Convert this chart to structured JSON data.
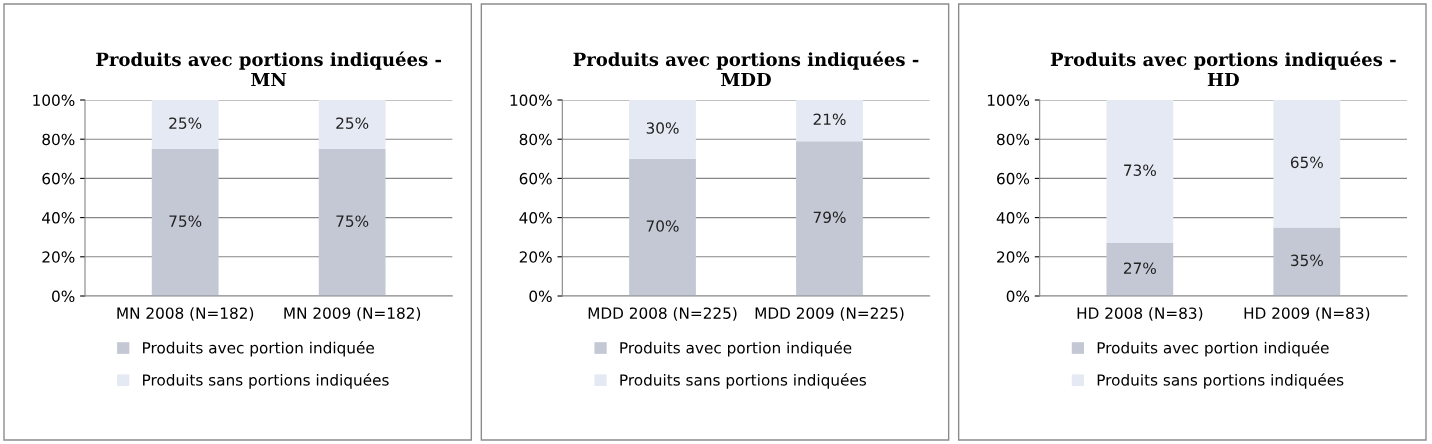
{
  "chart_data": [
    {
      "type": "bar",
      "title": "Produits avec portions indiquées -\nMN",
      "stacked": true,
      "categories": [
        "MN 2008 (N=182)",
        "MN 2009 (N=182)"
      ],
      "series": [
        {
          "name": "Produits avec portion indiquée",
          "color": "#c3c8d4",
          "values": [
            75,
            75
          ],
          "value_labels": [
            "75%",
            "75%"
          ]
        },
        {
          "name": "Produits sans portions indiquées",
          "color": "#e5e9f3",
          "values": [
            25,
            25
          ],
          "value_labels": [
            "25%",
            "25%"
          ]
        }
      ],
      "ylim": [
        0,
        100
      ],
      "yticks": [
        {
          "value": 0,
          "label": "0%"
        },
        {
          "value": 20,
          "label": "20%"
        },
        {
          "value": 40,
          "label": "40%"
        },
        {
          "value": 60,
          "label": "60%"
        },
        {
          "value": 80,
          "label": "80%"
        },
        {
          "value": 100,
          "label": "100%"
        }
      ],
      "grid": "y",
      "legend": "bottom"
    },
    {
      "type": "bar",
      "title": "Produits avec portions indiquées -\nMDD",
      "stacked": true,
      "categories": [
        "MDD 2008 (N=225)",
        "MDD 2009 (N=225)"
      ],
      "series": [
        {
          "name": "Produits avec portion indiquée",
          "color": "#c3c8d4",
          "values": [
            70,
            79
          ],
          "value_labels": [
            "70%",
            "79%"
          ]
        },
        {
          "name": "Produits sans portions indiquées",
          "color": "#e5e9f3",
          "values": [
            30,
            21
          ],
          "value_labels": [
            "30%",
            "21%"
          ]
        }
      ],
      "ylim": [
        0,
        100
      ],
      "yticks": [
        {
          "value": 0,
          "label": "0%"
        },
        {
          "value": 20,
          "label": "20%"
        },
        {
          "value": 40,
          "label": "40%"
        },
        {
          "value": 60,
          "label": "60%"
        },
        {
          "value": 80,
          "label": "80%"
        },
        {
          "value": 100,
          "label": "100%"
        }
      ],
      "grid": "y",
      "legend": "bottom"
    },
    {
      "type": "bar",
      "title": "Produits avec portions indiquées -\nHD",
      "stacked": true,
      "categories": [
        "HD 2008 (N=83)",
        "HD 2009 (N=83)"
      ],
      "series": [
        {
          "name": "Produits avec portion indiquée",
          "color": "#c3c8d4",
          "values": [
            27,
            35
          ],
          "value_labels": [
            "27%",
            "35%"
          ]
        },
        {
          "name": "Produits sans portions indiquées",
          "color": "#e5e9f3",
          "values": [
            73,
            65
          ],
          "value_labels": [
            "73%",
            "65%"
          ]
        }
      ],
      "ylim": [
        0,
        100
      ],
      "yticks": [
        {
          "value": 0,
          "label": "0%"
        },
        {
          "value": 20,
          "label": "20%"
        },
        {
          "value": 40,
          "label": "40%"
        },
        {
          "value": 60,
          "label": "60%"
        },
        {
          "value": 80,
          "label": "80%"
        },
        {
          "value": 100,
          "label": "100%"
        }
      ],
      "grid": "y",
      "legend": "bottom"
    }
  ]
}
